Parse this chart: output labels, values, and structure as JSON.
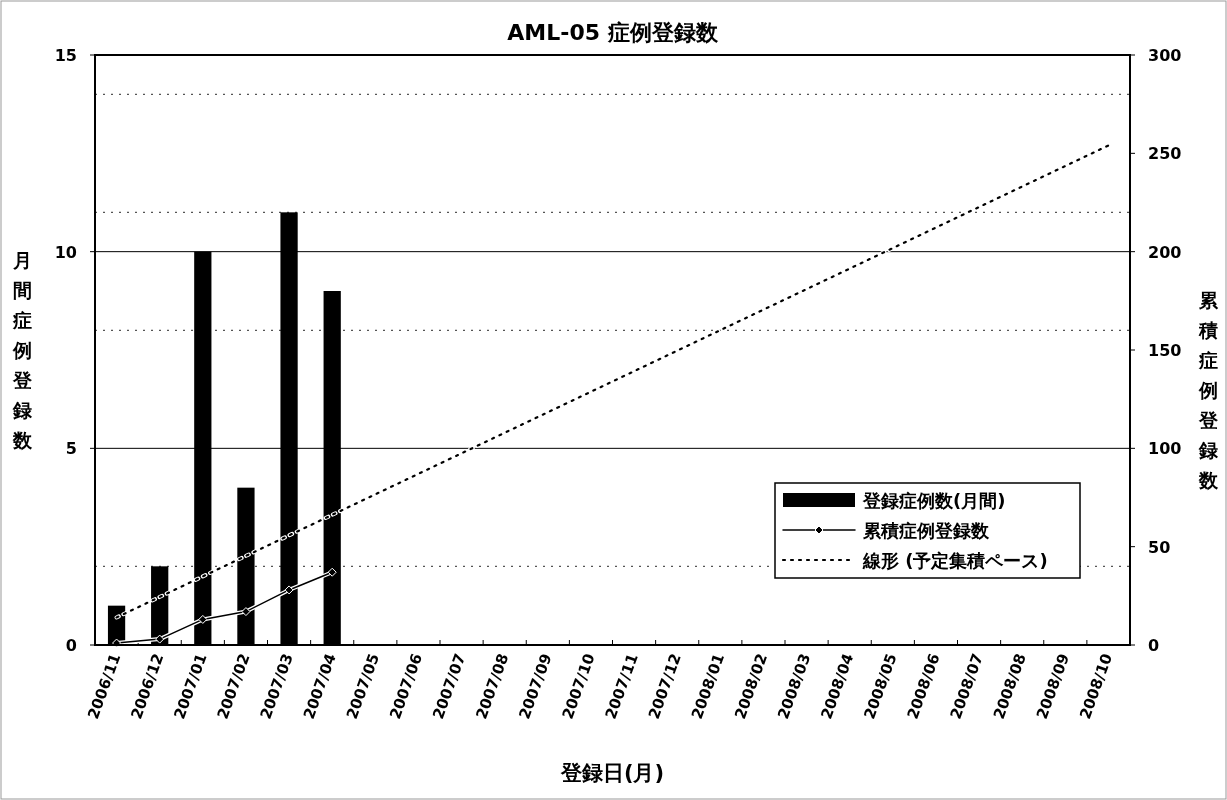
{
  "chart_data": {
    "type": "bar",
    "title": "AML-05 症例登録数",
    "xlabel": "登録日(月)",
    "ylabel": "月間症例登録数",
    "y2label": "累積症例登録数",
    "categories": [
      "2006/11",
      "2006/12",
      "2007/01",
      "2007/02",
      "2007/03",
      "2007/04",
      "2007/05",
      "2007/06",
      "2007/07",
      "2007/08",
      "2007/09",
      "2007/10",
      "2007/11",
      "2007/12",
      "2008/01",
      "2008/02",
      "2008/03",
      "2008/04",
      "2008/05",
      "2008/06",
      "2008/07",
      "2008/08",
      "2008/09",
      "2008/10"
    ],
    "series": [
      {
        "name": "登録症例数(月間)",
        "color": "#000000",
        "values": [
          1,
          2,
          10,
          4,
          11,
          9,
          null,
          null,
          null,
          null,
          null,
          null,
          null,
          null,
          null,
          null,
          null,
          null,
          null,
          null,
          null,
          null,
          null,
          null
        ]
      },
      {
        "name": "累積症例登録数",
        "type": "line",
        "axis": "y2",
        "color": "#000000",
        "marker": "diamond",
        "line_style": "solid",
        "values": [
          1,
          3,
          13,
          17,
          28,
          37,
          null,
          null,
          null,
          null,
          null,
          null,
          null,
          null,
          null,
          null,
          null,
          null,
          null,
          null,
          null,
          null,
          null,
          null
        ]
      },
      {
        "name": "線形 (予定集積ペース)",
        "type": "line",
        "axis": "y2",
        "color": "#000000",
        "marker": "none",
        "line_style": "dotted",
        "x": [
          "2006/11",
          "2008/10"
        ],
        "values": [
          14,
          254
        ]
      }
    ],
    "ylim": [
      0,
      15
    ],
    "yticks": [
      0,
      5,
      10,
      15
    ],
    "y2lim": [
      0,
      300
    ],
    "y2ticks": [
      0,
      50,
      100,
      150,
      200,
      250,
      300
    ],
    "ref_lines": [
      {
        "axis": "y",
        "value": 14,
        "color": "#555555",
        "line_style": "dotted"
      },
      {
        "axis": "y",
        "value": 11,
        "color": "#555555",
        "line_style": "dotted"
      },
      {
        "axis": "y",
        "value": 8,
        "color": "#555555",
        "line_style": "dotted"
      },
      {
        "axis": "y",
        "value": 2,
        "color": "#555555",
        "line_style": "dotted"
      }
    ],
    "grid": "y",
    "legend": "bottom right"
  }
}
